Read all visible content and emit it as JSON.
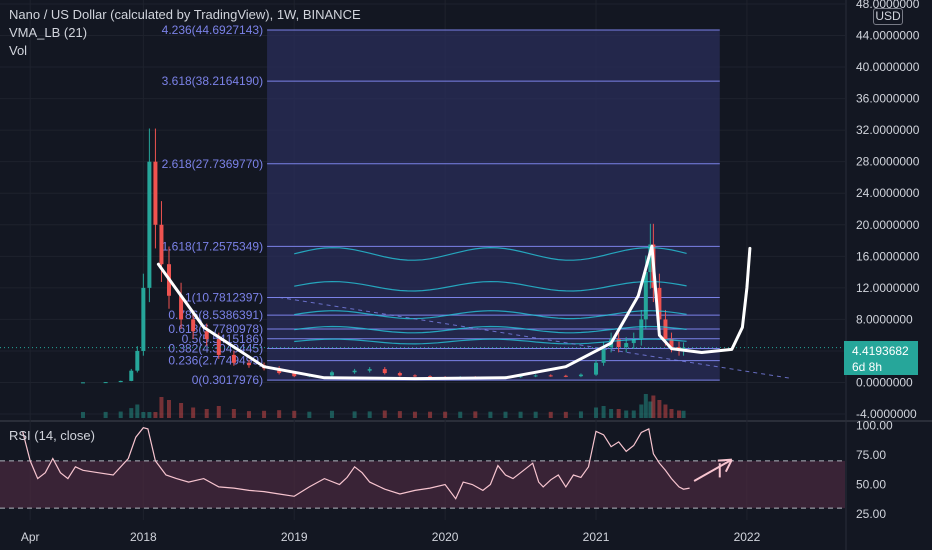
{
  "header": {
    "title": "Nano / US Dollar (calculated by TradingView), 1W, BINANCE",
    "indicator1": "VMA_LB (21)",
    "indicator2": "Vol"
  },
  "currency_badge": "USD",
  "current_price": {
    "value": "4.4193682",
    "countdown": "6d 8h"
  },
  "rsi": {
    "label": "RSI (14, close)"
  },
  "colors": {
    "background": "#131722",
    "fib_line": "#7b82e8",
    "fib_zone": "#2a2e5a",
    "up": "#26a69a",
    "down": "#ef5350",
    "vma": "#26c6da",
    "drawing": "#ffffff",
    "rsi_line": "#f7c4cf",
    "rsi_band": "#4a2a3e"
  },
  "chart_data": [
    {
      "type": "candlestick",
      "title": "Nano / US Dollar (calculated by TradingView), 1W, BINANCE",
      "x_ticks": [
        "Apr",
        "2018",
        "2019",
        "2020",
        "2021",
        "2022"
      ],
      "y_ticks": [
        "48.0000000",
        "44.0000000",
        "40.0000000",
        "36.0000000",
        "32.0000000",
        "28.0000000",
        "24.0000000",
        "20.0000000",
        "16.0000000",
        "12.0000000",
        "8.0000000",
        "4.0000000",
        "0.0000000",
        "-4.0000000"
      ],
      "y_tick_values": [
        48,
        44,
        40,
        36,
        32,
        28,
        24,
        20,
        16,
        12,
        8,
        4,
        0,
        -4
      ],
      "ylim": [
        -4.5,
        48.5
      ],
      "xlim": [
        2017.05,
        2022.65
      ],
      "fib_levels": [
        {
          "label": "4.236(44.6927143)",
          "value": 44.6927143
        },
        {
          "label": "3.618(38.2164190)",
          "value": 38.216419
        },
        {
          "label": "2.618(27.7369770)",
          "value": 27.736977
        },
        {
          "label": "1.618(17.2575349)",
          "value": 17.2575349
        },
        {
          "label": "1(10.7812397)",
          "value": 10.7812397
        },
        {
          "label": "0.786(8.5386391)",
          "value": 8.5386391
        },
        {
          "label": "0.618(6.7780978)",
          "value": 6.7780978
        },
        {
          "label": "0.5(5.5415186)",
          "value": 5.5415186
        },
        {
          "label": "0.382(4.3049445)",
          "value": 4.3049445
        },
        {
          "label": "0.236(2.7749499)",
          "value": 2.7749499
        },
        {
          "label": "0(0.3017976)",
          "value": 0.3017976
        }
      ],
      "fib_range_x": [
        2018.82,
        2021.82
      ],
      "price_series": [
        [
          2017.2,
          0.01
        ],
        [
          2017.6,
          0.02
        ],
        [
          2017.75,
          0.05
        ],
        [
          2017.85,
          0.2
        ],
        [
          2017.92,
          1.5
        ],
        [
          2017.96,
          4.0
        ],
        [
          2018.0,
          12.0
        ],
        [
          2018.04,
          28.0
        ],
        [
          2018.08,
          20.0
        ],
        [
          2018.12,
          15.0
        ],
        [
          2018.17,
          11.0
        ],
        [
          2018.25,
          8.0
        ],
        [
          2018.33,
          6.5
        ],
        [
          2018.42,
          5.5
        ],
        [
          2018.5,
          3.5
        ],
        [
          2018.6,
          2.5
        ],
        [
          2018.7,
          2.2
        ],
        [
          2018.8,
          1.8
        ],
        [
          2018.9,
          1.2
        ],
        [
          2019.0,
          0.8
        ],
        [
          2019.1,
          0.9
        ],
        [
          2019.25,
          1.3
        ],
        [
          2019.4,
          1.5
        ],
        [
          2019.5,
          1.7
        ],
        [
          2019.6,
          1.2
        ],
        [
          2019.7,
          0.9
        ],
        [
          2019.8,
          0.8
        ],
        [
          2019.9,
          0.7
        ],
        [
          2020.0,
          0.6
        ],
        [
          2020.1,
          0.7
        ],
        [
          2020.2,
          0.5
        ],
        [
          2020.3,
          0.6
        ],
        [
          2020.4,
          0.7
        ],
        [
          2020.5,
          0.8
        ],
        [
          2020.6,
          0.9
        ],
        [
          2020.7,
          0.85
        ],
        [
          2020.8,
          0.8
        ],
        [
          2020.9,
          1.0
        ],
        [
          2021.0,
          2.5
        ],
        [
          2021.05,
          4.5
        ],
        [
          2021.1,
          5.5
        ],
        [
          2021.15,
          4.5
        ],
        [
          2021.2,
          5.0
        ],
        [
          2021.25,
          5.5
        ],
        [
          2021.3,
          8.0
        ],
        [
          2021.33,
          14.0
        ],
        [
          2021.36,
          17.5
        ],
        [
          2021.38,
          12.0
        ],
        [
          2021.42,
          8.0
        ],
        [
          2021.46,
          5.5
        ],
        [
          2021.5,
          4.5
        ],
        [
          2021.55,
          4.0
        ],
        [
          2021.58,
          4.42
        ]
      ],
      "annotation_curve": [
        [
          2018.1,
          15.0
        ],
        [
          2018.4,
          7.0
        ],
        [
          2018.8,
          2.0
        ],
        [
          2019.2,
          0.6
        ],
        [
          2019.8,
          0.5
        ],
        [
          2020.4,
          0.6
        ],
        [
          2020.8,
          2.0
        ],
        [
          2021.1,
          5.0
        ],
        [
          2021.28,
          11.0
        ],
        [
          2021.37,
          17.3
        ],
        [
          2021.42,
          6.0
        ],
        [
          2021.5,
          4.3
        ],
        [
          2021.7,
          3.8
        ],
        [
          2021.9,
          4.2
        ],
        [
          2021.97,
          7.0
        ],
        [
          2022.0,
          12.0
        ],
        [
          2022.02,
          17.0
        ]
      ],
      "current_value": 4.4193682
    },
    {
      "type": "line",
      "title": "RSI (14, close)",
      "y_ticks": [
        "100.00",
        "75.00",
        "50.00",
        "25.00"
      ],
      "y_tick_values": [
        100,
        75,
        50,
        25
      ],
      "ylim": [
        20,
        102
      ],
      "bands": [
        30,
        70
      ],
      "series": [
        {
          "values": [
            [
              2017.2,
              95
            ],
            [
              2017.25,
              70
            ],
            [
              2017.3,
              55
            ],
            [
              2017.35,
              60
            ],
            [
              2017.4,
              72
            ],
            [
              2017.45,
              60
            ],
            [
              2017.5,
              55
            ],
            [
              2017.55,
              65
            ],
            [
              2017.6,
              62
            ],
            [
              2017.7,
              60
            ],
            [
              2017.8,
              58
            ],
            [
              2017.9,
              72
            ],
            [
              2017.95,
              90
            ],
            [
              2018.0,
              98
            ],
            [
              2018.03,
              97
            ],
            [
              2018.08,
              70
            ],
            [
              2018.15,
              58
            ],
            [
              2018.22,
              55
            ],
            [
              2018.3,
              52
            ],
            [
              2018.4,
              55
            ],
            [
              2018.5,
              48
            ],
            [
              2018.6,
              47
            ],
            [
              2018.7,
              45
            ],
            [
              2018.8,
              44
            ],
            [
              2018.9,
              42
            ],
            [
              2019.0,
              40
            ],
            [
              2019.1,
              48
            ],
            [
              2019.2,
              55
            ],
            [
              2019.3,
              50
            ],
            [
              2019.35,
              56
            ],
            [
              2019.4,
              65
            ],
            [
              2019.45,
              60
            ],
            [
              2019.5,
              52
            ],
            [
              2019.6,
              46
            ],
            [
              2019.7,
              42
            ],
            [
              2019.8,
              45
            ],
            [
              2019.9,
              47
            ],
            [
              2020.0,
              50
            ],
            [
              2020.07,
              38
            ],
            [
              2020.12,
              52
            ],
            [
              2020.18,
              50
            ],
            [
              2020.25,
              45
            ],
            [
              2020.3,
              50
            ],
            [
              2020.35,
              66
            ],
            [
              2020.4,
              58
            ],
            [
              2020.45,
              55
            ],
            [
              2020.5,
              60
            ],
            [
              2020.58,
              68
            ],
            [
              2020.62,
              52
            ],
            [
              2020.65,
              48
            ],
            [
              2020.7,
              54
            ],
            [
              2020.75,
              58
            ],
            [
              2020.8,
              48
            ],
            [
              2020.85,
              58
            ],
            [
              2020.9,
              56
            ],
            [
              2020.95,
              65
            ],
            [
              2021.0,
              95
            ],
            [
              2021.05,
              92
            ],
            [
              2021.1,
              82
            ],
            [
              2021.15,
              86
            ],
            [
              2021.2,
              78
            ],
            [
              2021.25,
              83
            ],
            [
              2021.3,
              94
            ],
            [
              2021.35,
              97
            ],
            [
              2021.38,
              76
            ],
            [
              2021.42,
              68
            ],
            [
              2021.46,
              62
            ],
            [
              2021.5,
              55
            ],
            [
              2021.55,
              48
            ],
            [
              2021.58,
              46
            ],
            [
              2021.62,
              47
            ]
          ]
        }
      ],
      "annotation_arrow": [
        [
          2021.65,
          53
        ],
        [
          2021.9,
          71
        ]
      ]
    }
  ]
}
